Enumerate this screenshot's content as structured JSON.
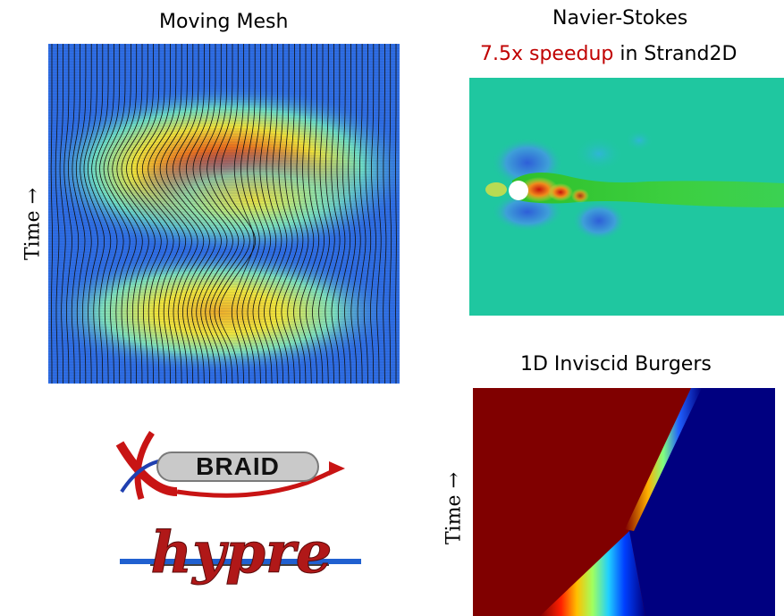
{
  "panels": {
    "moving_mesh": {
      "title": "Moving Mesh",
      "axis_label": "Time →"
    },
    "navier_stokes": {
      "title": "Navier-Stokes",
      "speedup": "7.5x speedup",
      "speedup_suffix": " in Strand2D"
    },
    "burgers": {
      "title": "1D Inviscid Burgers",
      "axis_label": "Time →"
    }
  },
  "logos": {
    "xbraid": "BRAID",
    "hypre": "hypre"
  },
  "colors": {
    "accent_red": "#c00000",
    "jet_dark_red": "#800000",
    "jet_dark_blue": "#000080",
    "ns_background": "#1fc7a0",
    "mesh_background": "#2f6fe8"
  }
}
